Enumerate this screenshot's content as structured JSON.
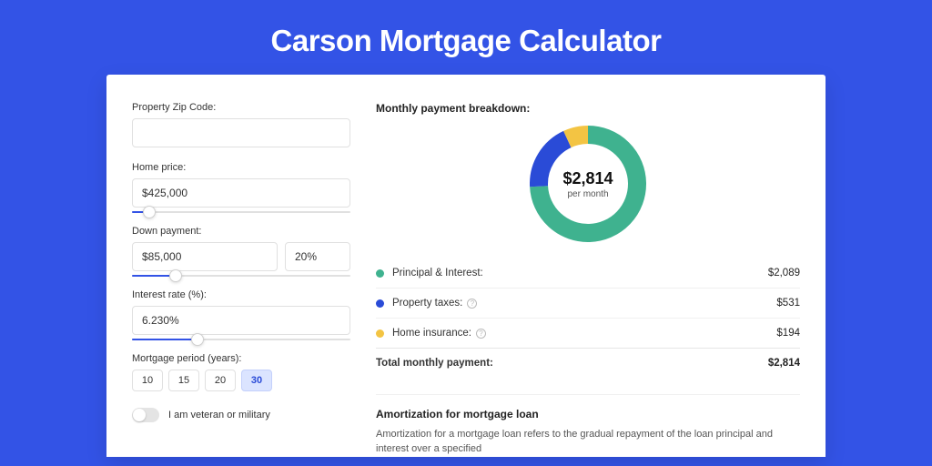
{
  "page": {
    "title": "Carson Mortgage Calculator",
    "background_color": "#3353e6",
    "card_background": "#ffffff"
  },
  "form": {
    "zip": {
      "label": "Property Zip Code:",
      "value": ""
    },
    "price": {
      "label": "Home price:",
      "value": "$425,000",
      "slider_pct": 8
    },
    "down": {
      "label": "Down payment:",
      "value": "$85,000",
      "pct_value": "20%",
      "slider_pct": 20
    },
    "rate": {
      "label": "Interest rate (%):",
      "value": "6.230%",
      "slider_pct": 30
    },
    "period": {
      "label": "Mortgage period (years):",
      "options": [
        "10",
        "15",
        "20",
        "30"
      ],
      "selected_index": 3
    },
    "veteran": {
      "label": "I am veteran or military",
      "checked": false
    }
  },
  "breakdown": {
    "title": "Monthly payment breakdown:",
    "center_amount": "$2,814",
    "center_sub": "per month",
    "chart": {
      "type": "donut",
      "slices": [
        {
          "key": "Principal & Interest:",
          "value": "$2,089",
          "pct": 74.2,
          "color": "#3fb28f",
          "info": false
        },
        {
          "key": "Property taxes:",
          "value": "$531",
          "pct": 18.9,
          "color": "#2a4bd7",
          "info": true
        },
        {
          "key": "Home insurance:",
          "value": "$194",
          "pct": 6.9,
          "color": "#f3c443",
          "info": true
        }
      ],
      "ring_width": 20,
      "radius": 54,
      "background_color": "#ffffff"
    },
    "total": {
      "key": "Total monthly payment:",
      "value": "$2,814"
    }
  },
  "amortization": {
    "title": "Amortization for mortgage loan",
    "text": "Amortization for a mortgage loan refers to the gradual repayment of the loan principal and interest over a specified"
  }
}
